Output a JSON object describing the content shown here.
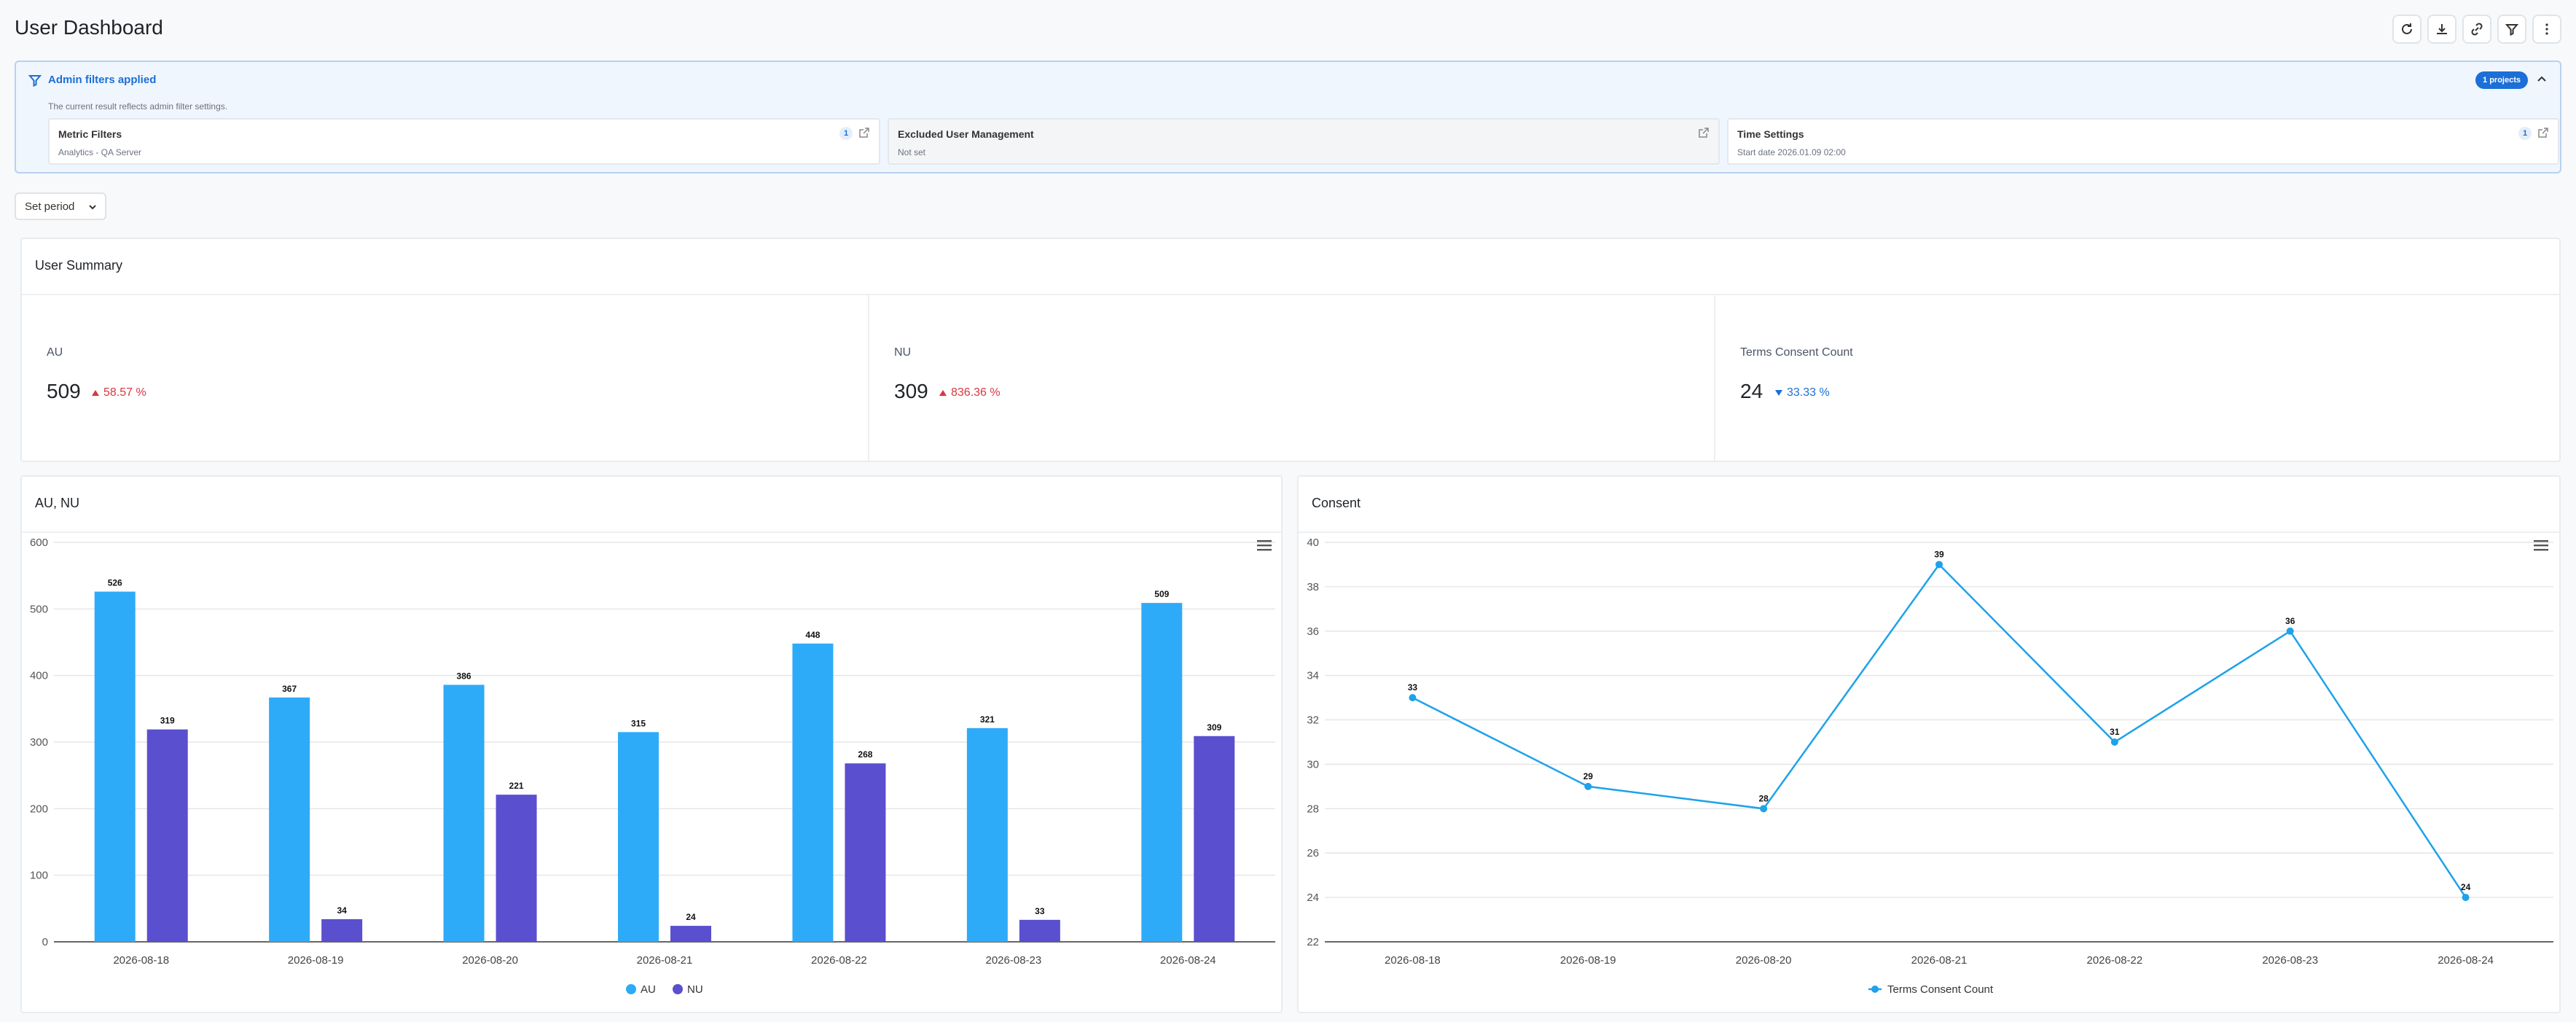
{
  "header": {
    "title": "User Dashboard",
    "toolbar": [
      {
        "name": "refresh-button",
        "icon": "refresh-icon"
      },
      {
        "name": "download-button",
        "icon": "download-icon"
      },
      {
        "name": "link-button",
        "icon": "link-icon"
      },
      {
        "name": "filter-button",
        "icon": "filter-icon"
      },
      {
        "name": "more-button",
        "icon": "more-vertical-icon"
      }
    ]
  },
  "filters": {
    "title": "Admin filters applied",
    "description": "The current result reflects admin filter settings.",
    "projects_badge": "1 projects",
    "cards": [
      {
        "title": "Metric Filters",
        "value": "Analytics - QA Server",
        "badge": "1"
      },
      {
        "title": "Excluded User Management",
        "value": "Not set",
        "badge": ""
      },
      {
        "title": "Time Settings",
        "value": "Start date 2026.01.09 02:00",
        "badge": "1"
      }
    ]
  },
  "period": {
    "label": "Set period"
  },
  "summary": {
    "title": "User Summary",
    "kpis": [
      {
        "label": "AU",
        "value": "509",
        "change": "58.57 %",
        "direction": "up"
      },
      {
        "label": "NU",
        "value": "309",
        "change": "836.36 %",
        "direction": "up"
      },
      {
        "label": "Terms Consent Count",
        "value": "24",
        "change": "33.33 %",
        "direction": "down"
      }
    ]
  },
  "charts": {
    "bar_title": "AU, NU",
    "line_title": "Consent"
  },
  "colors": {
    "au": "#2eabf8",
    "nu": "#5a4fcf",
    "line": "#1ea2ea",
    "up": "#d9363e",
    "down": "#1b6fd6"
  },
  "chart_data": [
    {
      "type": "bar",
      "title": "AU, NU",
      "categories": [
        "2026-08-18",
        "2026-08-19",
        "2026-08-20",
        "2026-08-21",
        "2026-08-22",
        "2026-08-23",
        "2026-08-24"
      ],
      "series": [
        {
          "name": "AU",
          "values": [
            526,
            367,
            386,
            315,
            448,
            321,
            509
          ]
        },
        {
          "name": "NU",
          "values": [
            319,
            34,
            221,
            24,
            268,
            33,
            309
          ]
        }
      ],
      "ylim": [
        0,
        600
      ],
      "yticks": [
        0,
        100,
        200,
        300,
        400,
        500,
        600
      ],
      "legend": "bottom",
      "grid": true
    },
    {
      "type": "line",
      "title": "Consent",
      "categories": [
        "2026-08-18",
        "2026-08-19",
        "2026-08-20",
        "2026-08-21",
        "2026-08-22",
        "2026-08-23",
        "2026-08-24"
      ],
      "series": [
        {
          "name": "Terms Consent Count",
          "values": [
            33,
            29,
            28,
            39,
            31,
            36,
            24
          ]
        }
      ],
      "ylim": [
        22,
        40
      ],
      "yticks": [
        22,
        24,
        26,
        28,
        30,
        32,
        34,
        36,
        38,
        40
      ],
      "legend": "bottom",
      "grid": true
    }
  ]
}
